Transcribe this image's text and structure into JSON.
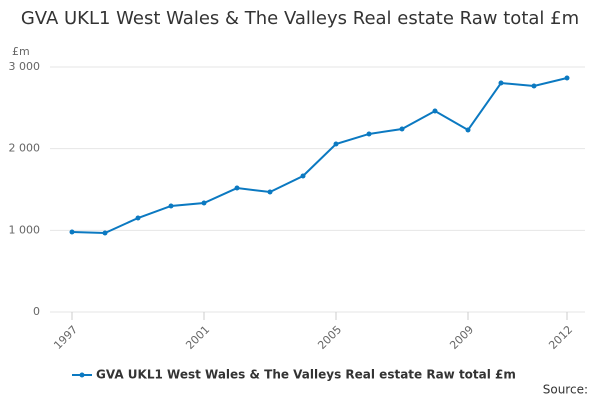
{
  "chart_data": {
    "type": "line",
    "title": "GVA UKL1 West Wales & The Valleys Real estate Raw total £m",
    "y_label": "£m",
    "source": "Source:",
    "x": [
      1997,
      1998,
      1999,
      2000,
      2001,
      2002,
      2003,
      2004,
      2005,
      2006,
      2007,
      2008,
      2009,
      2010,
      2011,
      2012
    ],
    "series": [
      {
        "name": "GVA UKL1 West Wales & The Valleys Real estate Raw total £m",
        "color": "#0b79c1",
        "values": [
          980,
          967,
          1151,
          1298,
          1335,
          1518,
          1469,
          1665,
          2057,
          2180,
          2241,
          2461,
          2229,
          2804,
          2767,
          2865
        ]
      }
    ],
    "xlim": [
      1997,
      2012
    ],
    "xticks": [
      1997,
      2001,
      2005,
      2009,
      2012
    ],
    "ylim": [
      0,
      3000
    ],
    "yticks": [
      0,
      {
        "value": 1000,
        "label": "1 000"
      },
      {
        "value": 2000,
        "label": "2 000"
      },
      {
        "value": 3000,
        "label": "3 000"
      }
    ],
    "grid": true
  }
}
